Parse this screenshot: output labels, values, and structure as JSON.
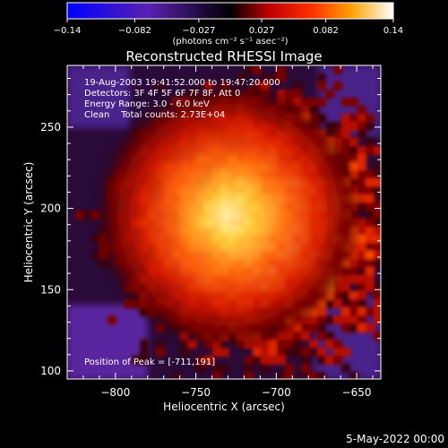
{
  "colorbar": {
    "ticks": [
      {
        "label": "−0.14",
        "value": -0.14
      },
      {
        "label": "−0.082",
        "value": -0.082
      },
      {
        "label": "−0.027",
        "value": -0.027
      },
      {
        "label": "0.027",
        "value": 0.027
      },
      {
        "label": "0.082",
        "value": 0.082
      },
      {
        "label": "0.14",
        "value": 0.14
      }
    ],
    "range": [
      -0.14,
      0.14
    ],
    "unit_label": "(photons cm⁻² s⁻¹ asec⁻²)",
    "stops": [
      {
        "at": 0.0,
        "color": "#0000ff"
      },
      {
        "at": 0.25,
        "color": "#5a20b0"
      },
      {
        "at": 0.5,
        "color": "#000000"
      },
      {
        "at": 0.62,
        "color": "#c00000"
      },
      {
        "at": 0.75,
        "color": "#ff3000"
      },
      {
        "at": 0.87,
        "color": "#ffa000"
      },
      {
        "at": 1.0,
        "color": "#ffffff"
      }
    ]
  },
  "chart_data": {
    "type": "heatmap",
    "title": "Reconstructed RHESSI Image",
    "xlabel": "Heliocentric X (arcsec)",
    "ylabel": "Heliocentric Y (arcsec)",
    "xlim": [
      -830,
      -635
    ],
    "ylim": [
      95,
      288
    ],
    "xticks": [
      -800,
      -750,
      -700,
      -650
    ],
    "xtick_labels": [
      "−800",
      "−750",
      "−700",
      "−650"
    ],
    "yticks": [
      100,
      150,
      200,
      250
    ],
    "ytick_labels": [
      "100",
      "150",
      "200",
      "250"
    ],
    "peak": {
      "x": -711,
      "y": 191,
      "value": 0.14
    },
    "annotations": [
      "19-Aug-2003 19:41:52.000 to 19:47:20.000",
      "Detectors: 3F 4F 5F 6F 7F 8F, Att 0",
      "Energy Range: 3.0 - 6.0 keV",
      "Clean    Total counts: 2.73E+04"
    ],
    "peak_label": "Position of Peak = [-711,191]"
  },
  "footer_date": "5-May-2022 00:00"
}
